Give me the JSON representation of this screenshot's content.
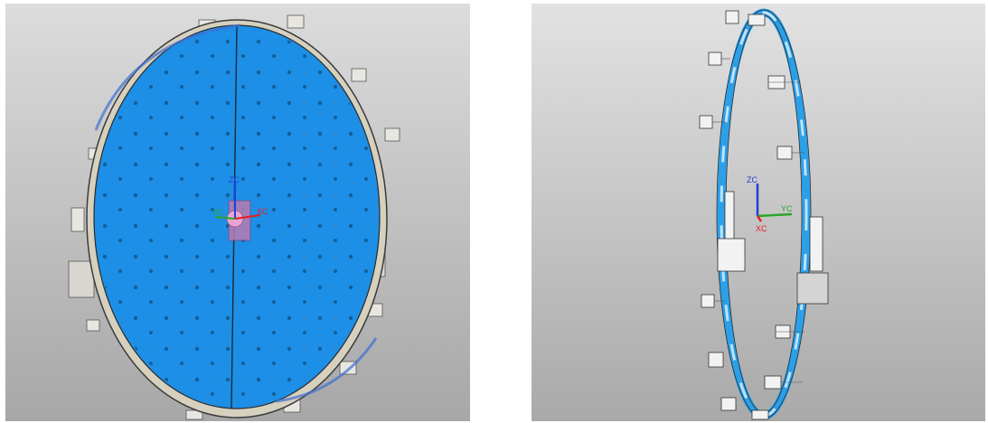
{
  "views": {
    "left": {
      "axis": {
        "x": "XC",
        "y": "YC",
        "z": "ZC"
      }
    },
    "right": {
      "axis": {
        "x": "XC",
        "y": "YC",
        "z": "ZC"
      }
    }
  },
  "colors": {
    "viewport_top": "#dcdcdc",
    "viewport_bottom": "#a9a9a9",
    "panel_blue": "#1d8fe6",
    "frame_beige": "#d6d0bf",
    "ring_blue": "#2b9fe8",
    "axis_x": "#e21f26",
    "axis_y": "#2aa52a",
    "axis_z": "#1f3fd9"
  },
  "icons": [
    "triad-icon",
    "triad-icon"
  ]
}
